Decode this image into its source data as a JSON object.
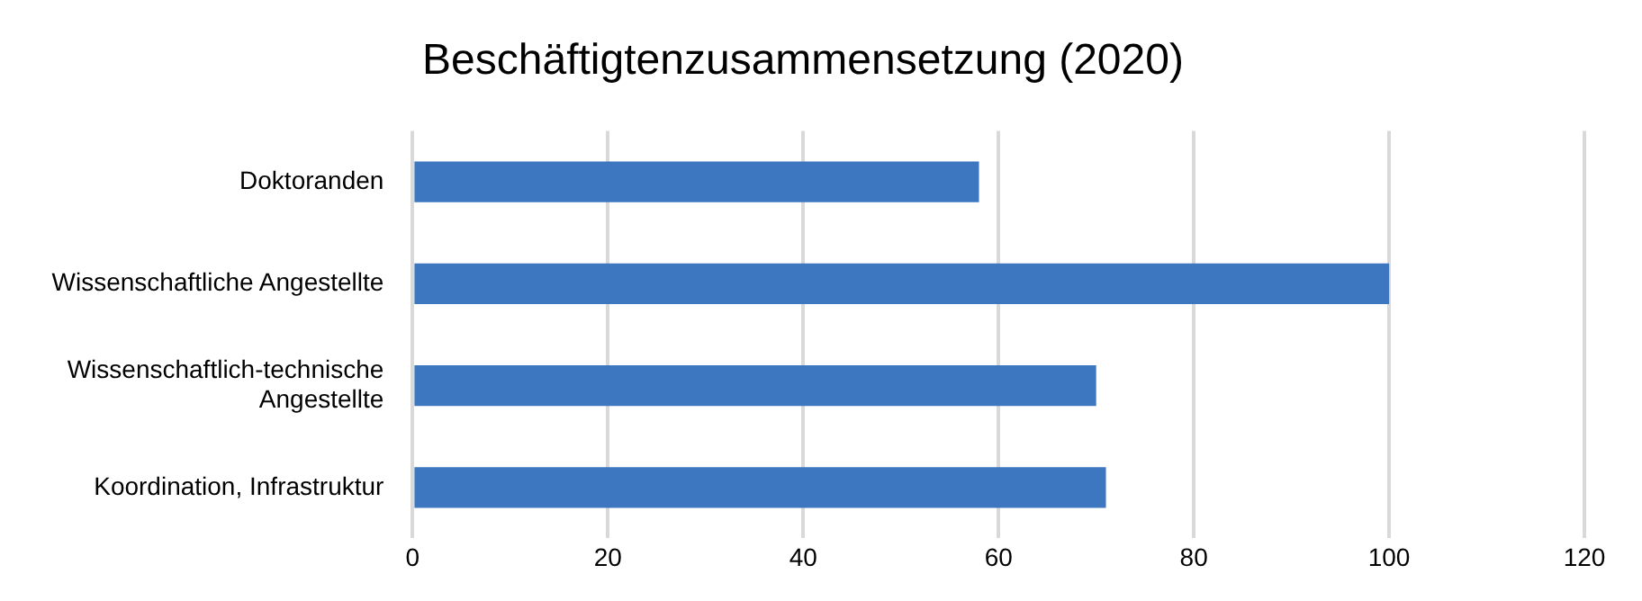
{
  "chart_data": {
    "type": "bar",
    "orientation": "horizontal",
    "title": "Beschäftigtenzusammensetzung (2020)",
    "categories": [
      "Doktoranden",
      "Wissenschaftliche Angestellte",
      "Wissenschaftlich-technische Angestellte",
      "Koordination, Infrastruktur"
    ],
    "values": [
      58,
      100,
      70,
      71
    ],
    "color": "#3c77c0",
    "xlim": [
      0,
      120
    ],
    "xticks": [
      0,
      20,
      40,
      60,
      80,
      100,
      120
    ],
    "grid": "x",
    "legend": false
  }
}
